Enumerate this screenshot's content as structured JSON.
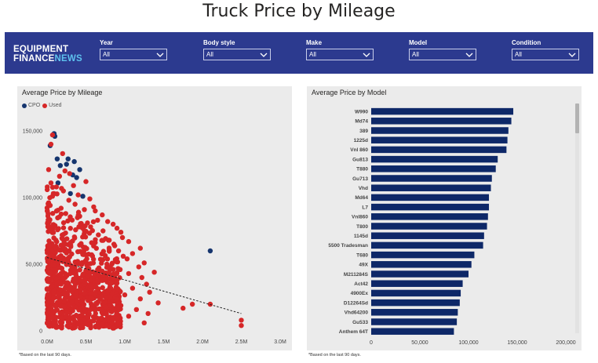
{
  "page": {
    "title": "Truck Price by Mileage"
  },
  "brand": {
    "line1": "EQUIPMENT",
    "line2a": "FINANCE",
    "line2b": "NEWS"
  },
  "filters": [
    {
      "label": "Year",
      "value": "All"
    },
    {
      "label": "Body style",
      "value": "All"
    },
    {
      "label": "Make",
      "value": "All"
    },
    {
      "label": "Model",
      "value": "All"
    },
    {
      "label": "Condition",
      "value": "All"
    }
  ],
  "colors": {
    "bar": "#0e2868",
    "cpo": "#16356e",
    "used": "#d62728",
    "accent": "#2c3a8f"
  },
  "scatter": {
    "title": "Average Price by Mileage",
    "legend": [
      {
        "name": "CPO",
        "color": "#16356e"
      },
      {
        "name": "Used",
        "color": "#d62728"
      }
    ],
    "footnote": "*Based on the last 90 days."
  },
  "bars": {
    "title": "Average Price by Model",
    "footnote": "*Based on the last 90 days."
  },
  "chart_data": [
    {
      "type": "scatter",
      "title": "Average Price by Mileage",
      "xlabel": "",
      "ylabel": "",
      "xlim": [
        0,
        3.0
      ],
      "ylim": [
        0,
        150000
      ],
      "x_ticks": [
        0,
        0.5,
        1.0,
        1.5,
        2.0,
        2.5,
        3.0
      ],
      "x_tick_labels": [
        "0.0M",
        "0.5M",
        "1.0M",
        "1.5M",
        "2.0M",
        "2.5M",
        "3.0M"
      ],
      "y_ticks": [
        0,
        50000,
        100000,
        150000
      ],
      "y_tick_labels": [
        "0",
        "50,000",
        "100,000",
        "150,000"
      ],
      "trendline": {
        "style": "dashed",
        "from": [
          0,
          55000
        ],
        "to": [
          2.5,
          13000
        ]
      },
      "series": [
        {
          "name": "CPO",
          "points": [
            [
              0.09,
              148000
            ],
            [
              0.1,
              146000
            ],
            [
              0.04,
              139000
            ],
            [
              0.13,
              129000
            ],
            [
              0.27,
              129000
            ],
            [
              0.35,
              127000
            ],
            [
              0.25,
              125000
            ],
            [
              0.17,
              124000
            ],
            [
              0.42,
              121000
            ],
            [
              0.33,
              117000
            ],
            [
              0.38,
              115000
            ],
            [
              0.14,
              111000
            ],
            [
              0.3,
              103000
            ],
            [
              0.46,
              101000
            ],
            [
              2.1,
              60000
            ]
          ]
        },
        {
          "name": "Used",
          "points": [
            [
              0.07,
              147000
            ],
            [
              0.05,
              140000
            ],
            [
              0.2,
              133000
            ],
            [
              0.02,
              121000
            ],
            [
              0.23,
              120000
            ],
            [
              0.29,
              118000
            ],
            [
              0.16,
              116000
            ],
            [
              0.5,
              112000
            ],
            [
              0.05,
              111000
            ],
            [
              0.34,
              109000
            ],
            [
              0.12,
              108000
            ],
            [
              0.21,
              105000
            ],
            [
              0.4,
              102000
            ],
            [
              0.07,
              101000
            ],
            [
              0.55,
              99000
            ],
            [
              0.28,
              98000
            ],
            [
              0.02,
              96000
            ],
            [
              0.36,
              95000
            ],
            [
              0.6,
              93000
            ],
            [
              0.18,
              92000
            ],
            [
              0.48,
              91000
            ],
            [
              0.62,
              90000
            ],
            [
              0.24,
              88000
            ],
            [
              0.71,
              87000
            ],
            [
              0.42,
              86000
            ],
            [
              0.3,
              84000
            ],
            [
              0.65,
              83000
            ],
            [
              0.78,
              82000
            ],
            [
              0.52,
              81000
            ],
            [
              0.85,
              80000
            ],
            [
              0.56,
              78000
            ],
            [
              0.9,
              77000
            ],
            [
              0.72,
              75000
            ],
            [
              0.95,
              74000
            ],
            [
              0.66,
              72000
            ],
            [
              0.97,
              70000
            ],
            [
              0.8,
              68000
            ],
            [
              1.05,
              67000
            ],
            [
              0.86,
              65000
            ],
            [
              1.2,
              62000
            ],
            [
              0.92,
              60000
            ],
            [
              1.1,
              58000
            ],
            [
              0.98,
              56000
            ],
            [
              1.03,
              54000
            ],
            [
              1.25,
              51000
            ],
            [
              1.18,
              48000
            ],
            [
              0.94,
              46000
            ],
            [
              1.05,
              43000
            ],
            [
              1.38,
              44000
            ],
            [
              1.22,
              40000
            ],
            [
              0.9,
              38000
            ],
            [
              1.28,
              35000
            ],
            [
              1.1,
              32000
            ],
            [
              1.32,
              29000
            ],
            [
              1.0,
              27000
            ],
            [
              1.2,
              24000
            ],
            [
              1.43,
              21000
            ],
            [
              0.95,
              19000
            ],
            [
              1.15,
              16000
            ],
            [
              1.3,
              13000
            ],
            [
              1.05,
              11000
            ],
            [
              0.9,
              9000
            ],
            [
              1.25,
              6000
            ],
            [
              1.75,
              17000
            ],
            [
              1.87,
              20000
            ],
            [
              2.1,
              20000
            ],
            [
              2.5,
              8000
            ],
            [
              2.5,
              4000
            ],
            [
              0.62,
              28000
            ],
            [
              0.75,
              18000
            ],
            [
              0.84,
              22000
            ],
            [
              0.7,
              9000
            ],
            [
              0.56,
              4000
            ],
            [
              0.4,
              5000
            ],
            [
              0.8,
              3000
            ]
          ]
        }
      ]
    },
    {
      "type": "bar",
      "orientation": "horizontal",
      "title": "Average Price by Model",
      "xlim": [
        0,
        200000
      ],
      "x_ticks": [
        0,
        50000,
        100000,
        150000,
        200000
      ],
      "x_tick_labels": [
        "0",
        "50,000",
        "100,000",
        "150,000",
        "200,000"
      ],
      "categories": [
        "W990",
        "Md74",
        "389",
        "1225d",
        "Vnl 860",
        "Gu813",
        "T880",
        "Gu713",
        "Vhd",
        "Md64",
        "L7",
        "Vnl860",
        "T800",
        "1145d",
        "5500 Tradesman",
        "T680",
        "49X",
        "M211284S",
        "Act42",
        "4900Ex",
        "D12264Sd",
        "Vhd64200",
        "Gu533",
        "Anthem 64T"
      ],
      "values": [
        146000,
        144000,
        141000,
        140000,
        139000,
        130000,
        128000,
        124000,
        123000,
        121000,
        121000,
        120000,
        119000,
        116000,
        115000,
        106000,
        103000,
        100000,
        94000,
        92000,
        91000,
        89000,
        88000,
        85000
      ]
    }
  ]
}
